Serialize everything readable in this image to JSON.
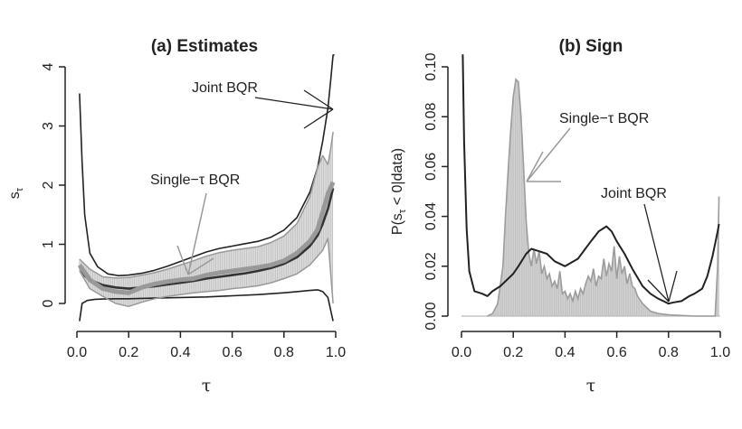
{
  "chart_data": [
    {
      "type": "line",
      "title": "(a) Estimates",
      "xlabel": "τ",
      "ylabel_main": "s",
      "ylabel_sub": "τ",
      "xlim": [
        0,
        1
      ],
      "ylim": [
        0,
        4
      ],
      "xticks": [
        "0.0",
        "0.2",
        "0.4",
        "0.6",
        "0.8",
        "1.0"
      ],
      "yticks": [
        "0",
        "1",
        "2",
        "3",
        "4"
      ],
      "annotations": [
        {
          "text": "Joint BQR",
          "color": "#222222"
        },
        {
          "text": "Single−τ BQR",
          "color": "#999999"
        }
      ],
      "series": [
        {
          "name": "Joint BQR estimate",
          "color": "#333333",
          "x": [
            0.01,
            0.03,
            0.05,
            0.1,
            0.15,
            0.2,
            0.25,
            0.3,
            0.35,
            0.4,
            0.45,
            0.5,
            0.55,
            0.6,
            0.65,
            0.7,
            0.75,
            0.8,
            0.85,
            0.9,
            0.93,
            0.95,
            0.97,
            0.99
          ],
          "y": [
            0.62,
            0.47,
            0.4,
            0.31,
            0.27,
            0.25,
            0.27,
            0.29,
            0.32,
            0.35,
            0.38,
            0.42,
            0.45,
            0.48,
            0.51,
            0.55,
            0.6,
            0.67,
            0.78,
            0.97,
            1.15,
            1.35,
            1.6,
            1.95
          ]
        },
        {
          "name": "Joint BQR upper band",
          "color": "#222222",
          "x": [
            0.01,
            0.02,
            0.03,
            0.05,
            0.08,
            0.12,
            0.16,
            0.2,
            0.25,
            0.3,
            0.35,
            0.4,
            0.45,
            0.5,
            0.55,
            0.6,
            0.65,
            0.7,
            0.75,
            0.8,
            0.85,
            0.9,
            0.93,
            0.95,
            0.97,
            0.98,
            0.99,
            0.995
          ],
          "y": [
            3.55,
            2.4,
            1.5,
            0.85,
            0.62,
            0.5,
            0.47,
            0.48,
            0.51,
            0.56,
            0.63,
            0.71,
            0.79,
            0.87,
            0.93,
            0.97,
            1.01,
            1.05,
            1.12,
            1.24,
            1.45,
            1.88,
            2.3,
            2.75,
            3.3,
            3.75,
            4.2,
            4.2
          ]
        },
        {
          "name": "Joint BQR lower band",
          "color": "#222222",
          "x": [
            0.01,
            0.02,
            0.04,
            0.07,
            0.1,
            0.15,
            0.2,
            0.3,
            0.4,
            0.5,
            0.6,
            0.7,
            0.8,
            0.85,
            0.9,
            0.93,
            0.95,
            0.97,
            0.99
          ],
          "y": [
            -0.3,
            0.0,
            0.05,
            0.07,
            0.075,
            0.08,
            0.08,
            0.09,
            0.1,
            0.11,
            0.13,
            0.15,
            0.18,
            0.2,
            0.22,
            0.23,
            0.2,
            0.1,
            -0.3
          ]
        },
        {
          "name": "Single-τ BQR estimate",
          "color": "#999999",
          "x": [
            0.01,
            0.05,
            0.1,
            0.15,
            0.2,
            0.25,
            0.3,
            0.35,
            0.4,
            0.45,
            0.5,
            0.55,
            0.6,
            0.65,
            0.7,
            0.75,
            0.8,
            0.85,
            0.9,
            0.93,
            0.95,
            0.97,
            0.99
          ],
          "y": [
            0.65,
            0.4,
            0.25,
            0.2,
            0.18,
            0.27,
            0.33,
            0.37,
            0.4,
            0.42,
            0.48,
            0.52,
            0.55,
            0.58,
            0.61,
            0.65,
            0.72,
            0.85,
            1.05,
            1.25,
            1.55,
            1.85,
            2.05
          ]
        },
        {
          "name": "Single-τ BQR upper band",
          "color": "#999999",
          "x": [
            0.01,
            0.05,
            0.1,
            0.15,
            0.2,
            0.25,
            0.3,
            0.35,
            0.4,
            0.45,
            0.5,
            0.55,
            0.6,
            0.65,
            0.7,
            0.75,
            0.8,
            0.85,
            0.9,
            0.93,
            0.95,
            0.97,
            0.98,
            0.99
          ],
          "y": [
            0.75,
            0.58,
            0.45,
            0.43,
            0.44,
            0.48,
            0.52,
            0.58,
            0.65,
            0.72,
            0.8,
            0.86,
            0.9,
            0.93,
            0.96,
            1.03,
            1.14,
            1.35,
            1.8,
            2.3,
            2.5,
            2.35,
            2.6,
            2.9
          ]
        },
        {
          "name": "Single-τ BQR lower band",
          "color": "#999999",
          "x": [
            0.01,
            0.05,
            0.1,
            0.15,
            0.2,
            0.25,
            0.3,
            0.35,
            0.4,
            0.45,
            0.5,
            0.55,
            0.6,
            0.65,
            0.7,
            0.75,
            0.8,
            0.85,
            0.9,
            0.93,
            0.95,
            0.97,
            0.99
          ],
          "y": [
            0.55,
            0.25,
            0.12,
            0.0,
            -0.05,
            0.02,
            0.08,
            0.12,
            0.15,
            0.18,
            0.2,
            0.22,
            0.25,
            0.27,
            0.3,
            0.35,
            0.42,
            0.5,
            0.65,
            0.8,
            0.9,
            1.1,
            0.0
          ]
        }
      ]
    },
    {
      "type": "line",
      "title": "(b) Sign",
      "xlabel": "τ",
      "ylabel": "P(s  < 0|data)",
      "ylabel_pre": "P(s",
      "ylabel_sub": "τ",
      "ylabel_post": " < 0|data)",
      "xlim": [
        0,
        1
      ],
      "ylim": [
        0,
        0.1
      ],
      "xticks": [
        "0.0",
        "0.2",
        "0.4",
        "0.6",
        "0.8",
        "1.0"
      ],
      "yticks": [
        "0.00",
        "0.02",
        "0.04",
        "0.06",
        "0.08",
        "0.10"
      ],
      "annotations": [
        {
          "text": "Single−τ BQR",
          "color": "#999999"
        },
        {
          "text": "Joint BQR",
          "color": "#222222"
        }
      ],
      "series": [
        {
          "name": "Joint BQR",
          "color": "#222222",
          "x": [
            0.005,
            0.01,
            0.02,
            0.03,
            0.05,
            0.08,
            0.1,
            0.12,
            0.15,
            0.18,
            0.2,
            0.22,
            0.25,
            0.27,
            0.3,
            0.33,
            0.36,
            0.4,
            0.45,
            0.5,
            0.53,
            0.56,
            0.58,
            0.6,
            0.63,
            0.66,
            0.7,
            0.73,
            0.76,
            0.78,
            0.8,
            0.82,
            0.85,
            0.88,
            0.9,
            0.93,
            0.95,
            0.97,
            0.99,
            0.995
          ],
          "y": [
            0.105,
            0.07,
            0.035,
            0.018,
            0.01,
            0.009,
            0.008,
            0.01,
            0.012,
            0.015,
            0.017,
            0.02,
            0.025,
            0.027,
            0.026,
            0.025,
            0.022,
            0.02,
            0.023,
            0.03,
            0.034,
            0.036,
            0.034,
            0.03,
            0.025,
            0.019,
            0.012,
            0.009,
            0.007,
            0.006,
            0.005,
            0.0055,
            0.006,
            0.008,
            0.009,
            0.011,
            0.016,
            0.024,
            0.034,
            0.037
          ]
        },
        {
          "name": "Single-τ BQR",
          "color": "#999999",
          "x": [
            0.1,
            0.12,
            0.14,
            0.16,
            0.17,
            0.18,
            0.19,
            0.2,
            0.21,
            0.22,
            0.23,
            0.24,
            0.25,
            0.26,
            0.27,
            0.28,
            0.29,
            0.3,
            0.31,
            0.32,
            0.33,
            0.34,
            0.35,
            0.36,
            0.37,
            0.38,
            0.39,
            0.4,
            0.41,
            0.42,
            0.43,
            0.44,
            0.45,
            0.46,
            0.47,
            0.48,
            0.49,
            0.5,
            0.51,
            0.52,
            0.53,
            0.54,
            0.55,
            0.56,
            0.57,
            0.58,
            0.59,
            0.6,
            0.61,
            0.62,
            0.63,
            0.64,
            0.65,
            0.66,
            0.67,
            0.68,
            0.7,
            0.73,
            0.76,
            0.8,
            0.9,
            0.98,
            0.99,
            0.995
          ],
          "y": [
            0,
            0.001,
            0.005,
            0.02,
            0.04,
            0.058,
            0.074,
            0.088,
            0.095,
            0.094,
            0.08,
            0.06,
            0.038,
            0.025,
            0.02,
            0.027,
            0.021,
            0.026,
            0.017,
            0.02,
            0.015,
            0.017,
            0.012,
            0.014,
            0.011,
            0.018,
            0.009,
            0.01,
            0.007,
            0.009,
            0.006,
            0.01,
            0.007,
            0.011,
            0.009,
            0.013,
            0.016,
            0.014,
            0.019,
            0.012,
            0.016,
            0.015,
            0.023,
            0.016,
            0.021,
            0.018,
            0.028,
            0.015,
            0.024,
            0.017,
            0.02,
            0.013,
            0.017,
            0.012,
            0.011,
            0.008,
            0.005,
            0.002,
            0.001,
            0.0005,
            0,
            0,
            0.02,
            0.048
          ]
        }
      ]
    }
  ]
}
